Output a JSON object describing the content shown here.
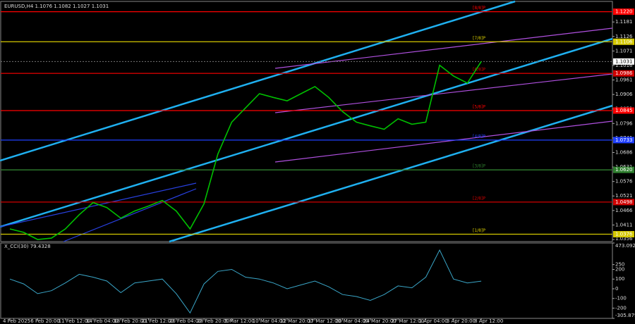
{
  "chart_data": [
    {
      "type": "line",
      "title": "EURUSD,H4  1.1076 1.1082 1.1027 1.1031",
      "color": "#00c000",
      "categories": [
        "4 Feb 2025",
        null,
        "6 Feb 20:00",
        null,
        "11 Feb 12:00",
        null,
        "14 Feb 04:00",
        null,
        "18 Feb 20:00",
        null,
        "21 Feb 12:00",
        null,
        "26 Feb 04:00",
        null,
        "28 Feb 20:00",
        null,
        "5 Mar 12:00",
        null,
        "10 Mar 04:00",
        null,
        "12 Mar 20:00",
        null,
        "17 Mar 12:00",
        null,
        "20 Mar 04:00",
        null,
        "24 Mar 20:00",
        null,
        "27 Mar 12:00",
        null,
        "1 Apr 04:00",
        null,
        "3 Apr 20:00",
        null,
        "8 Apr 12:00"
      ],
      "values": [
        1.0396,
        1.0383,
        1.0356,
        1.0361,
        1.0396,
        1.045,
        1.0496,
        1.0477,
        1.0437,
        1.0464,
        1.0483,
        1.0504,
        1.0464,
        1.0396,
        1.0491,
        1.068,
        1.0801,
        1.0855,
        1.0909,
        1.0895,
        1.0882,
        1.0909,
        1.0936,
        1.0895,
        1.0841,
        1.0801,
        1.0787,
        1.0774,
        1.0814,
        1.0793,
        1.0801,
        1.1017,
        1.0976,
        1.0949,
        1.1031
      ],
      "ylim": [
        1.0348,
        1.1259
      ],
      "yticks": [
        1.1181,
        1.1126,
        1.1071,
        1.1016,
        1.0961,
        1.0906,
        1.0851,
        1.0796,
        1.0741,
        1.0686,
        1.0631,
        1.0576,
        1.0521,
        1.0466,
        1.0411,
        1.0356
      ],
      "levels": [
        {
          "value": 1.122,
          "label": "1.1220",
          "name": "[8/8]P",
          "color": "#ff0000"
        },
        {
          "value": 1.1106,
          "label": "1.1106",
          "name": "[7/8]P",
          "color": "#d4c800"
        },
        {
          "value": 1.0986,
          "label": "1.0986",
          "name": "[6/8]P",
          "color": "#d00000"
        },
        {
          "value": 1.0845,
          "label": "1.0845",
          "name": "[5/8]P",
          "color": "#ff0000"
        },
        {
          "value": 1.0733,
          "label": "1.0733",
          "name": "[4/8]P",
          "color": "#2040ff"
        },
        {
          "value": 1.062,
          "label": "1.0620",
          "name": "[3/8]P",
          "color": "#2f7f2f"
        },
        {
          "value": 1.0498,
          "label": "1.0498",
          "name": "[2/8]P",
          "color": "#d00000"
        },
        {
          "value": 1.0376,
          "label": "1.0376",
          "name": "[1/8]P",
          "color": "#d4c800"
        }
      ],
      "last_price": 1.1031
    },
    {
      "type": "line",
      "title": "X_CCI(30) 79.4328",
      "color": "#3aa6c8",
      "values": [
        100,
        50,
        -50,
        -20,
        60,
        150,
        120,
        80,
        -40,
        60,
        80,
        100,
        -50,
        -250,
        50,
        180,
        200,
        120,
        100,
        60,
        0,
        40,
        80,
        20,
        -60,
        -80,
        -120,
        -60,
        30,
        10,
        120,
        400,
        100,
        60,
        79.4328
      ],
      "ylim": [
        -305.8791,
        473.0924
      ],
      "yticks": [
        473.0924,
        250,
        200,
        100,
        0,
        -100,
        -200,
        -305.8791
      ]
    }
  ]
}
